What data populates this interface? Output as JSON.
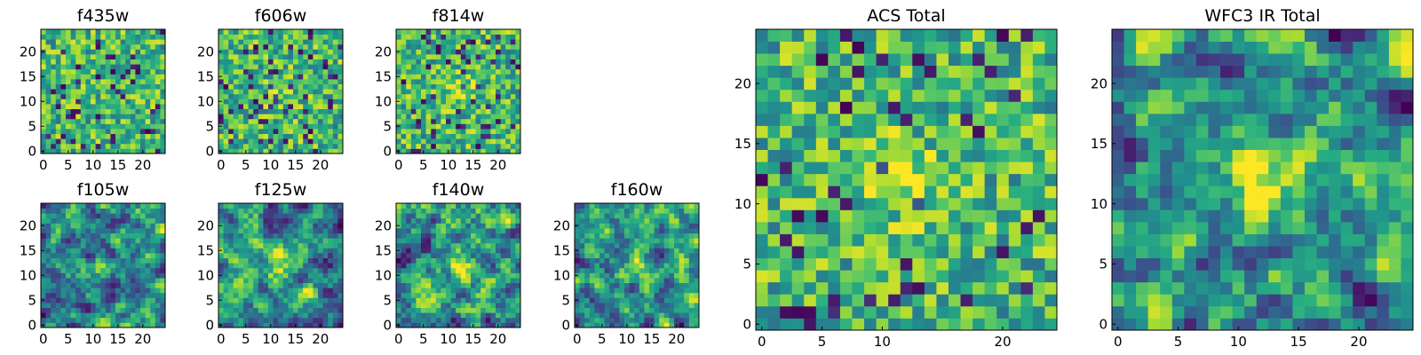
{
  "chart_data": [
    {
      "type": "heatmap",
      "title": "f435w",
      "xlim": [
        0,
        25
      ],
      "ylim": [
        0,
        25
      ],
      "x_ticks": [
        0,
        5,
        10,
        15,
        20
      ],
      "y_ticks": [
        0,
        5,
        10,
        15,
        20
      ],
      "grid": false,
      "colormap": "viridis",
      "texture": "noise",
      "seed": 11,
      "center_bright": 0.0
    },
    {
      "type": "heatmap",
      "title": "f606w",
      "xlim": [
        0,
        25
      ],
      "ylim": [
        0,
        25
      ],
      "x_ticks": [
        0,
        5,
        10,
        15,
        20
      ],
      "y_ticks": [
        0,
        5,
        10,
        15,
        20
      ],
      "grid": false,
      "colormap": "viridis",
      "texture": "noise",
      "seed": 23,
      "center_bright": 0.15
    },
    {
      "type": "heatmap",
      "title": "f814w",
      "xlim": [
        0,
        25
      ],
      "ylim": [
        0,
        25
      ],
      "x_ticks": [
        0,
        5,
        10,
        15,
        20
      ],
      "y_ticks": [
        0,
        5,
        10,
        15,
        20
      ],
      "grid": false,
      "colormap": "viridis",
      "texture": "noise",
      "seed": 37,
      "center_bright": 0.25
    },
    {
      "type": "heatmap",
      "title": "f105w",
      "xlim": [
        0,
        25
      ],
      "ylim": [
        0,
        25
      ],
      "x_ticks": [
        0,
        5,
        10,
        15,
        20
      ],
      "y_ticks": [
        0,
        5,
        10,
        15,
        20
      ],
      "grid": false,
      "colormap": "viridis",
      "texture": "smooth",
      "seed": 41,
      "center_bright": 0.2
    },
    {
      "type": "heatmap",
      "title": "f125w",
      "xlim": [
        0,
        25
      ],
      "ylim": [
        0,
        25
      ],
      "x_ticks": [
        0,
        5,
        10,
        15,
        20
      ],
      "y_ticks": [
        0,
        5,
        10,
        15,
        20
      ],
      "grid": false,
      "colormap": "viridis",
      "texture": "smooth",
      "seed": 53,
      "center_bright": 0.35
    },
    {
      "type": "heatmap",
      "title": "f140w",
      "xlim": [
        0,
        25
      ],
      "ylim": [
        0,
        25
      ],
      "x_ticks": [
        0,
        5,
        10,
        15,
        20
      ],
      "y_ticks": [
        0,
        5,
        10,
        15,
        20
      ],
      "grid": false,
      "colormap": "viridis",
      "texture": "smooth",
      "seed": 67,
      "center_bright": 0.3
    },
    {
      "type": "heatmap",
      "title": "f160w",
      "xlim": [
        0,
        25
      ],
      "ylim": [
        0,
        25
      ],
      "x_ticks": [
        0,
        5,
        10,
        15,
        20
      ],
      "y_ticks": [
        0,
        5,
        10,
        15,
        20
      ],
      "grid": false,
      "colormap": "viridis",
      "texture": "smooth",
      "seed": 79,
      "center_bright": 0.3
    },
    {
      "type": "heatmap",
      "title": "ACS Total",
      "xlim": [
        0,
        25
      ],
      "ylim": [
        0,
        25
      ],
      "x_ticks": [
        0,
        5,
        10,
        20
      ],
      "y_ticks": [
        0,
        5,
        10,
        15,
        20
      ],
      "grid": false,
      "colormap": "viridis",
      "texture": "noise",
      "seed": 97,
      "center_bright": 0.3
    },
    {
      "type": "heatmap",
      "title": "WFC3 IR Total",
      "xlim": [
        0,
        25
      ],
      "ylim": [
        0,
        25
      ],
      "x_ticks": [
        0,
        5,
        10,
        15,
        20
      ],
      "y_ticks": [
        0,
        5,
        10,
        15,
        20
      ],
      "grid": false,
      "colormap": "viridis",
      "texture": "smooth",
      "seed": 113,
      "center_bright": 0.45
    }
  ]
}
